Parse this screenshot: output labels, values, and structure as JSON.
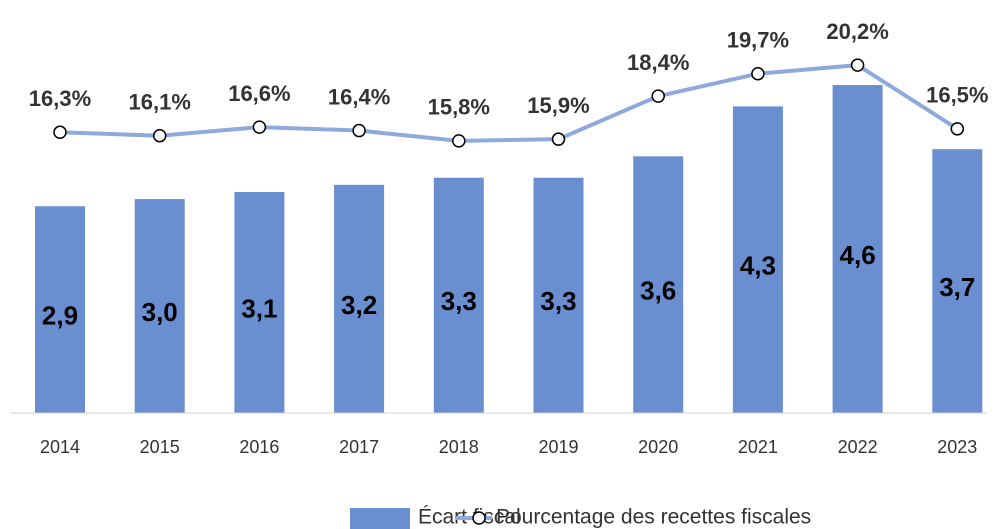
{
  "chart_data": {
    "type": "bar",
    "categories": [
      "2014",
      "2015",
      "2016",
      "2017",
      "2018",
      "2019",
      "2020",
      "2021",
      "2022",
      "2023"
    ],
    "series": [
      {
        "name": "Écart fiscal",
        "type": "bar",
        "color": "#6a8fd0",
        "values": [
          2.9,
          3.0,
          3.1,
          3.2,
          3.3,
          3.3,
          3.6,
          4.3,
          4.6,
          3.7
        ],
        "value_labels": [
          "2,9",
          "3,0",
          "3,1",
          "3,2",
          "3,3",
          "3,3",
          "3,6",
          "4,3",
          "4,6",
          "3,7"
        ]
      },
      {
        "name": "Pourcentage des recettes fiscales",
        "type": "line",
        "axis": "y2",
        "color": "#8eaadc",
        "values": [
          16.3,
          16.1,
          16.6,
          16.4,
          15.8,
          15.9,
          18.4,
          19.7,
          20.2,
          16.5
        ],
        "value_labels": [
          "16,3%",
          "16,1%",
          "16,6%",
          "16,4%",
          "15,8%",
          "15,9%",
          "18,4%",
          "19,7%",
          "20,2%",
          "16,5%"
        ]
      }
    ],
    "ylim": [
      0,
      5
    ],
    "y2lim": [
      0,
      20.7
    ],
    "legend": "bottom"
  }
}
